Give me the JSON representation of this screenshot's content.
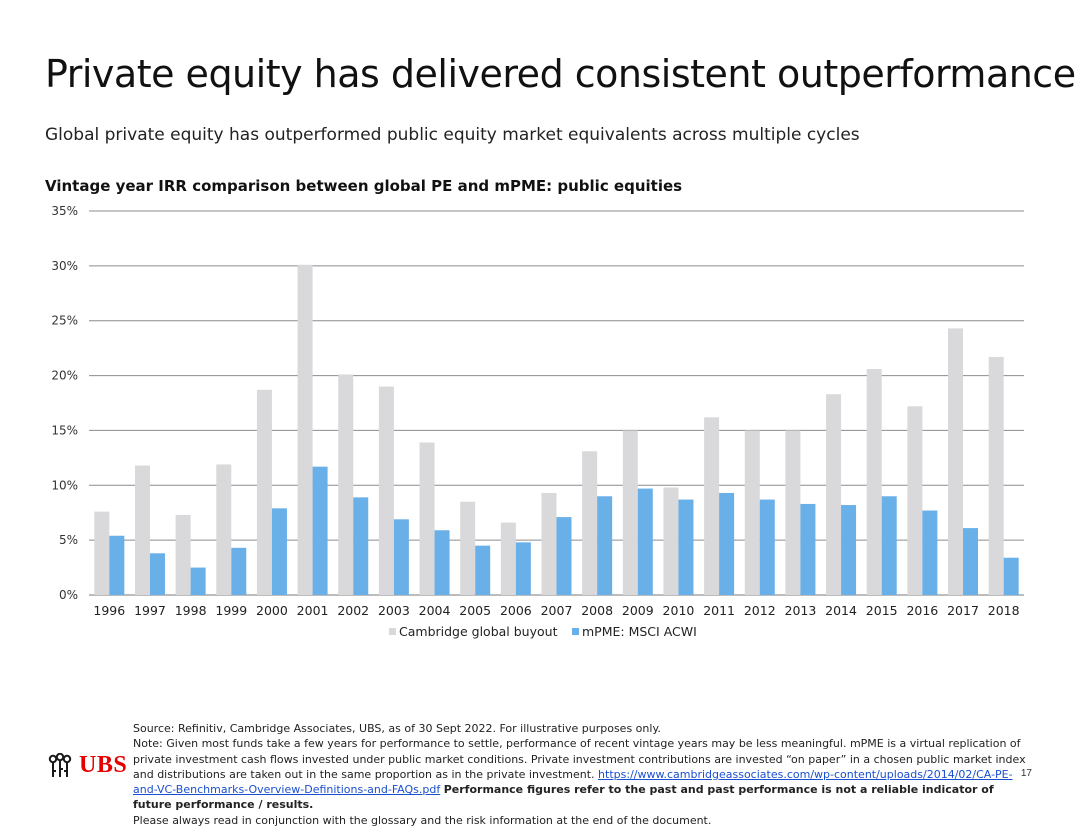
{
  "header": {
    "title": "Private equity has delivered consistent outperformance",
    "subtitle": "Global private equity has outperformed public equity market equivalents across multiple cycles"
  },
  "chart_data": {
    "type": "bar",
    "title": "Vintage year IRR comparison between global PE and mPME: public equities",
    "xlabel": "",
    "ylabel": "",
    "ylim": [
      0,
      35
    ],
    "yticks": [
      "0%",
      "5%",
      "10%",
      "15%",
      "20%",
      "25%",
      "30%",
      "35%"
    ],
    "grid": true,
    "legend_position": "bottom",
    "categories": [
      "1996",
      "1997",
      "1998",
      "1999",
      "2000",
      "2001",
      "2002",
      "2003",
      "2004",
      "2005",
      "2006",
      "2007",
      "2008",
      "2009",
      "2010",
      "2011",
      "2012",
      "2013",
      "2014",
      "2015",
      "2016",
      "2017",
      "2018"
    ],
    "series": [
      {
        "name": "Cambridge global buyout",
        "color": "#d9d8da",
        "values": [
          7.6,
          11.8,
          7.3,
          11.9,
          18.7,
          30.1,
          20.1,
          19.0,
          13.9,
          8.5,
          6.6,
          9.3,
          13.1,
          15.0,
          9.8,
          16.2,
          15.0,
          15.0,
          18.3,
          20.6,
          17.2,
          24.3,
          21.7
        ]
      },
      {
        "name": "mPME: MSCI ACWI",
        "color": "#6ab0e8",
        "values": [
          5.4,
          3.8,
          2.5,
          4.3,
          7.9,
          11.7,
          8.9,
          6.9,
          5.9,
          4.5,
          4.8,
          7.1,
          9.0,
          9.7,
          8.7,
          9.3,
          8.7,
          8.3,
          8.2,
          9.0,
          7.7,
          6.1,
          3.4
        ]
      }
    ]
  },
  "footer": {
    "source": "Source: Refinitiv, Cambridge Associates, UBS, as of 30 Sept 2022. For illustrative purposes only.",
    "note_prefix": "Note: Given most funds take a few years for performance to settle, performance of recent vintage years may be less meaningful. mPME is a virtual replication of private investment cash flows invested under public market conditions. Private investment contributions are invested “on paper” in a chosen public market index and distributions are taken out in the same proportion as in the private investment.",
    "link_text": "https://www.cambridgeassociates.com/wp-content/uploads/2014/02/CA-PE-and-VC-Benchmarks-Overview-Definitions-and-FAQs.pdf",
    "bold_text": "Performance figures refer to the past and past performance is not a reliable indicator of future performance / results.",
    "closing": "Please always read in conjunction with the glossary and the risk information at the end of the document."
  },
  "logo": {
    "wordmark": "UBS",
    "color": "#e60000",
    "icon": "three-keys-icon"
  },
  "page_number": "17"
}
